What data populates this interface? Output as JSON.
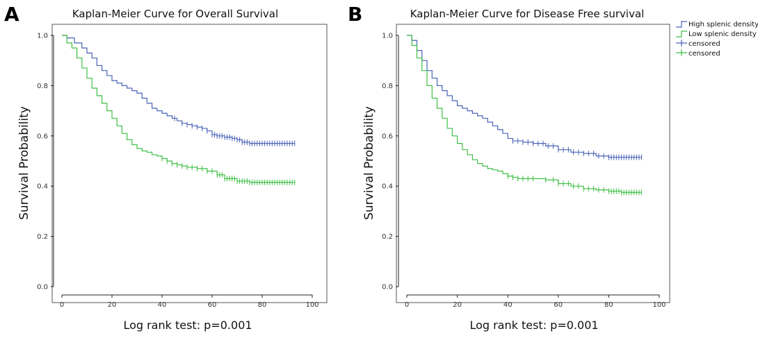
{
  "colors": {
    "high": "#4a63b8",
    "low": "#3fbf45",
    "frame": "#555555",
    "axis": "#222222"
  },
  "legend": {
    "placement": "top-right",
    "items": [
      {
        "label": "High splenic density",
        "kind": "line",
        "series": "high"
      },
      {
        "label": "Low splenic density",
        "kind": "line",
        "series": "low"
      },
      {
        "label": "censored",
        "kind": "censor",
        "series": "high"
      },
      {
        "label": "censored",
        "kind": "censor",
        "series": "low"
      }
    ]
  },
  "chart_data": [
    {
      "type": "line",
      "panel_letter": "A",
      "title": "Kaplan-Meier Curve for Overall Survival",
      "xlabel": "Log rank test: p=0.001",
      "ylabel": "Survival Probability",
      "xlim": [
        0,
        100
      ],
      "ylim": [
        0,
        1.0
      ],
      "xticks": [
        0,
        20,
        40,
        60,
        80,
        100
      ],
      "yticks": [
        0.0,
        0.2,
        0.4,
        0.6,
        0.8,
        1.0
      ],
      "grid": false,
      "series": [
        {
          "name": "High splenic density",
          "color_key": "high",
          "x": [
            0,
            2,
            5,
            8,
            10,
            12,
            14,
            16,
            18,
            20,
            22,
            24,
            26,
            28,
            30,
            32,
            34,
            36,
            38,
            40,
            42,
            44,
            46,
            48,
            50,
            52,
            54,
            56,
            58,
            60,
            62,
            65,
            68,
            70,
            72,
            75,
            80,
            85,
            90,
            93
          ],
          "y": [
            1.0,
            0.99,
            0.97,
            0.95,
            0.93,
            0.91,
            0.88,
            0.86,
            0.84,
            0.82,
            0.81,
            0.8,
            0.79,
            0.78,
            0.77,
            0.75,
            0.73,
            0.71,
            0.7,
            0.69,
            0.68,
            0.67,
            0.66,
            0.65,
            0.645,
            0.64,
            0.635,
            0.63,
            0.62,
            0.605,
            0.6,
            0.595,
            0.59,
            0.585,
            0.575,
            0.57,
            0.57,
            0.57,
            0.57,
            0.57
          ],
          "censored_x": [
            45,
            48,
            50,
            52,
            54,
            56,
            58,
            60,
            61,
            62,
            63,
            64,
            65,
            66,
            67,
            68,
            69,
            70,
            71,
            72,
            73,
            74,
            75,
            76,
            77,
            78,
            79,
            80,
            81,
            82,
            83,
            84,
            85,
            86,
            87,
            88,
            89,
            90,
            91,
            92,
            93
          ]
        },
        {
          "name": "Low splenic density",
          "color_key": "low",
          "x": [
            0,
            2,
            4,
            6,
            8,
            10,
            12,
            14,
            16,
            18,
            20,
            22,
            24,
            26,
            28,
            30,
            32,
            34,
            36,
            38,
            40,
            42,
            44,
            46,
            48,
            50,
            54,
            58,
            62,
            65,
            70,
            75,
            80,
            85,
            90,
            93
          ],
          "y": [
            1.0,
            0.97,
            0.95,
            0.91,
            0.87,
            0.83,
            0.79,
            0.76,
            0.73,
            0.7,
            0.67,
            0.64,
            0.61,
            0.585,
            0.565,
            0.55,
            0.54,
            0.535,
            0.525,
            0.52,
            0.51,
            0.5,
            0.49,
            0.485,
            0.48,
            0.475,
            0.47,
            0.46,
            0.445,
            0.43,
            0.42,
            0.415,
            0.415,
            0.415,
            0.415,
            0.415
          ],
          "censored_x": [
            40,
            42,
            44,
            46,
            48,
            50,
            52,
            54,
            56,
            58,
            60,
            62,
            63,
            64,
            65,
            66,
            67,
            68,
            69,
            70,
            71,
            72,
            73,
            74,
            75,
            76,
            77,
            78,
            79,
            80,
            81,
            82,
            83,
            84,
            85,
            86,
            87,
            88,
            89,
            90,
            91,
            92,
            93
          ]
        }
      ]
    },
    {
      "type": "line",
      "panel_letter": "B",
      "title": "Kaplan-Meier Curve for Disease Free survival",
      "xlabel": "Log rank test: p=0.001",
      "ylabel": "Survival Probability",
      "xlim": [
        0,
        100
      ],
      "ylim": [
        0,
        1.0
      ],
      "xticks": [
        0,
        20,
        40,
        60,
        80,
        100
      ],
      "yticks": [
        0.0,
        0.2,
        0.4,
        0.6,
        0.8,
        1.0
      ],
      "grid": false,
      "series": [
        {
          "name": "High splenic density",
          "color_key": "high",
          "x": [
            0,
            2,
            4,
            6,
            8,
            10,
            12,
            14,
            16,
            18,
            20,
            22,
            24,
            26,
            28,
            30,
            32,
            34,
            36,
            38,
            40,
            42,
            44,
            46,
            50,
            55,
            60,
            65,
            70,
            75,
            80,
            85,
            90,
            93
          ],
          "y": [
            1.0,
            0.98,
            0.94,
            0.9,
            0.86,
            0.83,
            0.8,
            0.78,
            0.76,
            0.74,
            0.72,
            0.71,
            0.7,
            0.69,
            0.68,
            0.67,
            0.655,
            0.64,
            0.625,
            0.61,
            0.59,
            0.58,
            0.58,
            0.575,
            0.57,
            0.56,
            0.545,
            0.535,
            0.53,
            0.52,
            0.515,
            0.515,
            0.515,
            0.515
          ],
          "censored_x": [
            42,
            44,
            46,
            48,
            50,
            52,
            54,
            56,
            58,
            60,
            62,
            64,
            66,
            68,
            70,
            72,
            74,
            76,
            78,
            80,
            81,
            82,
            83,
            84,
            85,
            86,
            87,
            88,
            89,
            90,
            91,
            92,
            93
          ]
        },
        {
          "name": "Low splenic density",
          "color_key": "low",
          "x": [
            0,
            2,
            4,
            6,
            8,
            10,
            12,
            14,
            16,
            18,
            20,
            22,
            24,
            26,
            28,
            30,
            32,
            34,
            36,
            38,
            40,
            42,
            44,
            46,
            50,
            55,
            60,
            65,
            70,
            75,
            80,
            85,
            90,
            93
          ],
          "y": [
            1.0,
            0.96,
            0.91,
            0.86,
            0.8,
            0.75,
            0.71,
            0.67,
            0.63,
            0.6,
            0.57,
            0.545,
            0.525,
            0.505,
            0.49,
            0.48,
            0.47,
            0.465,
            0.46,
            0.45,
            0.44,
            0.435,
            0.43,
            0.43,
            0.43,
            0.425,
            0.41,
            0.4,
            0.39,
            0.385,
            0.38,
            0.375,
            0.375,
            0.375
          ],
          "censored_x": [
            40,
            42,
            44,
            46,
            48,
            50,
            55,
            58,
            60,
            62,
            64,
            66,
            68,
            70,
            72,
            74,
            76,
            78,
            80,
            81,
            82,
            83,
            84,
            85,
            86,
            87,
            88,
            89,
            90,
            91,
            92,
            93
          ]
        }
      ]
    }
  ]
}
